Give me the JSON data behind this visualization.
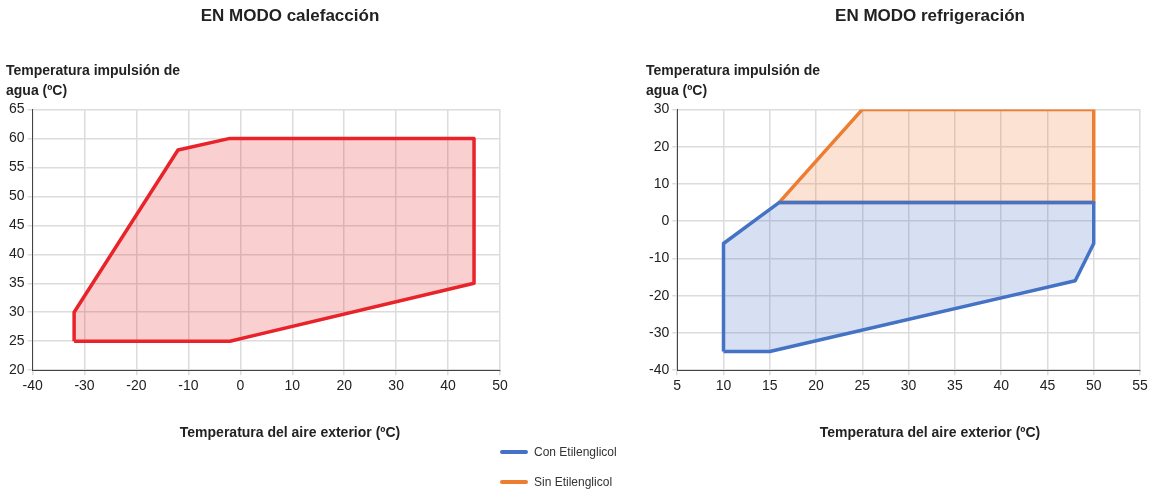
{
  "chart_data": [
    {
      "type": "area",
      "title": "EN MODO calefacción",
      "ylabel": "Temperatura impulsión de agua (ºC)",
      "xlabel": "Temperatura del aire exterior (ºC)",
      "xlim": [
        -40,
        50
      ],
      "xticks": [
        -40,
        -30,
        -20,
        -10,
        0,
        10,
        20,
        30,
        40,
        50
      ],
      "ylim": [
        20,
        65
      ],
      "yticks": [
        20,
        25,
        30,
        35,
        40,
        45,
        50,
        55,
        60,
        65
      ],
      "grid": true,
      "series": [
        {
          "color": "#e8232a",
          "x": [
            -32,
            -32,
            -12,
            -2,
            45,
            45,
            -2,
            -32
          ],
          "values": [
            25,
            30,
            58,
            60,
            60,
            35,
            25,
            25
          ]
        }
      ]
    },
    {
      "type": "area",
      "title": "EN MODO refrigeración",
      "ylabel": "Temperatura impulsión de agua (ºC)",
      "xlabel": "Temperatura del aire exterior (ºC)",
      "xlim": [
        5,
        55
      ],
      "xticks": [
        5,
        10,
        15,
        20,
        25,
        30,
        35,
        40,
        45,
        50,
        55
      ],
      "ylim": [
        -40,
        30
      ],
      "yticks": [
        -40,
        -30,
        -20,
        -10,
        0,
        10,
        20,
        30
      ],
      "grid": true,
      "legend": "bottom",
      "series": [
        {
          "name": "Con Etilenglicol",
          "color": "#4472c4",
          "x": [
            10,
            10,
            16,
            50,
            50,
            48,
            15,
            10
          ],
          "values": [
            -35,
            -6,
            5,
            5,
            -6,
            -16,
            -35,
            -35
          ]
        },
        {
          "name": "Sin Etilenglicol",
          "color": "#ed7d31",
          "x": [
            16,
            25,
            50,
            50,
            16
          ],
          "values": [
            5,
            30,
            30,
            5,
            5
          ]
        }
      ]
    }
  ]
}
